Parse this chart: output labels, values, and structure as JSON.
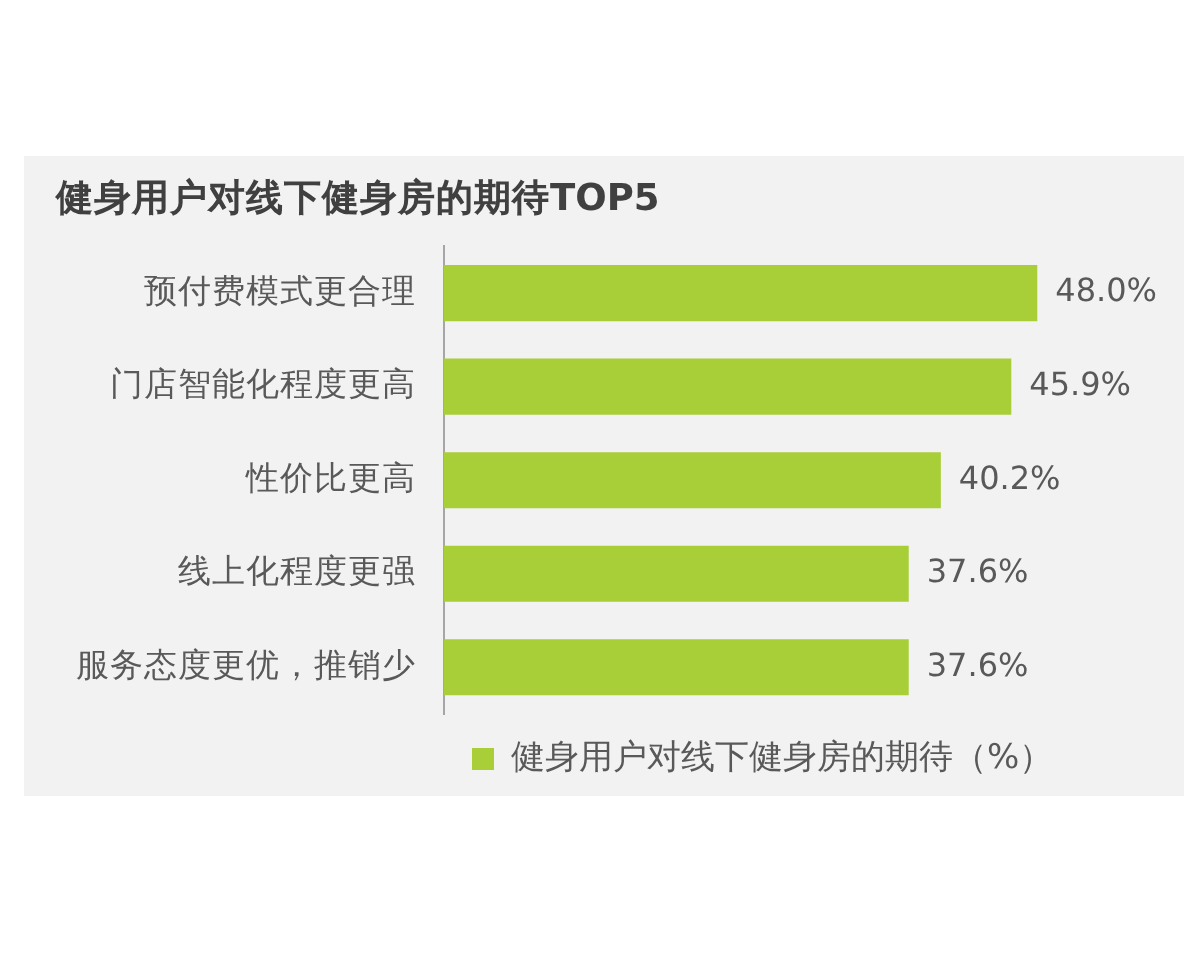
{
  "chart_data": {
    "type": "bar",
    "orientation": "horizontal",
    "title": "健身用户对线下健身房的期待TOP5",
    "categories": [
      "预付费模式更合理",
      "门店智能化程度更高",
      "性价比更高",
      "线上化程度更强",
      "服务态度更优，推销少"
    ],
    "series": [
      {
        "name": "健身用户对线下健身房的期待（%）",
        "color": "#a8cf38",
        "values": [
          48.0,
          45.9,
          40.2,
          37.6,
          37.6
        ],
        "value_labels": [
          "48.0%",
          "45.9%",
          "40.2%",
          "37.6%",
          "37.6%"
        ]
      }
    ],
    "tick_labels": "y",
    "legend": "bottom"
  }
}
